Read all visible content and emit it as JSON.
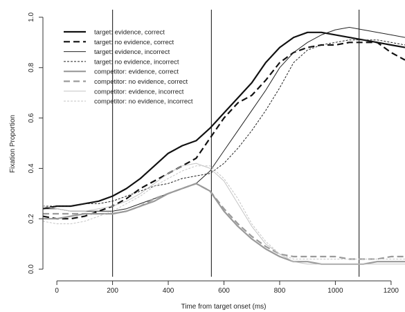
{
  "chart_data": {
    "type": "line",
    "title": "",
    "xlabel": "Time from target onset (ms)",
    "ylabel": "Fixation Proportion",
    "xlim": [
      -50,
      1250
    ],
    "ylim": [
      -0.03,
      1.03
    ],
    "xticks": [
      0,
      200,
      400,
      600,
      800,
      1000,
      1200
    ],
    "yticks": [
      0.0,
      0.2,
      0.4,
      0.6,
      0.8,
      1.0
    ],
    "ytick_labels": [
      "0.0",
      "0.2",
      "0.4",
      "0.6",
      "0.8",
      "1.0"
    ],
    "vertical_lines": [
      200,
      555,
      1085
    ],
    "grid": false,
    "legend_position": "top-left",
    "series": [
      {
        "name": "target: evidence, correct",
        "color": "#111111",
        "width": 2.2,
        "dash": "solid",
        "x": [
          -50,
          0,
          50,
          100,
          150,
          200,
          250,
          300,
          350,
          400,
          450,
          500,
          550,
          600,
          650,
          700,
          750,
          800,
          850,
          900,
          950,
          1000,
          1050,
          1100,
          1150,
          1200,
          1250
        ],
        "y": [
          0.24,
          0.25,
          0.25,
          0.26,
          0.27,
          0.29,
          0.32,
          0.36,
          0.41,
          0.46,
          0.49,
          0.51,
          0.56,
          0.62,
          0.68,
          0.74,
          0.82,
          0.88,
          0.92,
          0.94,
          0.94,
          0.93,
          0.92,
          0.91,
          0.9,
          0.89,
          0.88
        ]
      },
      {
        "name": "target: no evidence, correct",
        "color": "#111111",
        "width": 2.2,
        "dash": "9,5",
        "x": [
          -50,
          0,
          50,
          100,
          150,
          200,
          250,
          300,
          350,
          400,
          450,
          500,
          550,
          600,
          650,
          700,
          750,
          800,
          850,
          900,
          950,
          1000,
          1050,
          1100,
          1150,
          1200,
          1250
        ],
        "y": [
          0.21,
          0.2,
          0.2,
          0.21,
          0.23,
          0.25,
          0.28,
          0.32,
          0.35,
          0.38,
          0.41,
          0.44,
          0.52,
          0.6,
          0.66,
          0.69,
          0.75,
          0.82,
          0.86,
          0.88,
          0.89,
          0.89,
          0.9,
          0.9,
          0.9,
          0.86,
          0.83
        ]
      },
      {
        "name": "target: evidence, incorrect",
        "color": "#222222",
        "width": 1.0,
        "dash": "solid",
        "x": [
          -50,
          0,
          50,
          100,
          150,
          200,
          250,
          300,
          350,
          400,
          450,
          500,
          550,
          600,
          650,
          700,
          750,
          800,
          850,
          900,
          950,
          1000,
          1050,
          1100,
          1150,
          1200,
          1250
        ],
        "y": [
          0.24,
          0.24,
          0.23,
          0.23,
          0.23,
          0.23,
          0.24,
          0.26,
          0.28,
          0.3,
          0.32,
          0.34,
          0.39,
          0.47,
          0.55,
          0.63,
          0.71,
          0.8,
          0.86,
          0.9,
          0.93,
          0.95,
          0.96,
          0.95,
          0.94,
          0.93,
          0.92
        ]
      },
      {
        "name": "target: no evidence, incorrect",
        "color": "#222222",
        "width": 1.0,
        "dash": "3,2",
        "x": [
          -50,
          0,
          50,
          100,
          150,
          200,
          250,
          300,
          350,
          400,
          450,
          500,
          550,
          600,
          650,
          700,
          750,
          800,
          850,
          900,
          950,
          1000,
          1050,
          1100,
          1150,
          1200,
          1250
        ],
        "y": [
          0.25,
          0.25,
          0.25,
          0.26,
          0.26,
          0.27,
          0.29,
          0.31,
          0.33,
          0.34,
          0.36,
          0.37,
          0.38,
          0.42,
          0.48,
          0.55,
          0.63,
          0.72,
          0.82,
          0.87,
          0.89,
          0.9,
          0.91,
          0.91,
          0.91,
          0.9,
          0.89
        ]
      },
      {
        "name": "competitor: evidence, correct",
        "color": "#9a9a9a",
        "width": 2.2,
        "dash": "solid",
        "x": [
          -50,
          0,
          50,
          100,
          150,
          200,
          250,
          300,
          350,
          400,
          450,
          500,
          550,
          600,
          650,
          700,
          750,
          800,
          850,
          900,
          950,
          1000,
          1050,
          1100,
          1150,
          1200,
          1250
        ],
        "y": [
          0.2,
          0.2,
          0.21,
          0.22,
          0.22,
          0.22,
          0.23,
          0.25,
          0.27,
          0.3,
          0.32,
          0.34,
          0.31,
          0.23,
          0.17,
          0.12,
          0.08,
          0.05,
          0.03,
          0.03,
          0.02,
          0.02,
          0.02,
          0.02,
          0.03,
          0.03,
          0.03
        ]
      },
      {
        "name": "competitor: no evidence, correct",
        "color": "#9a9a9a",
        "width": 2.2,
        "dash": "9,5",
        "x": [
          -50,
          0,
          50,
          100,
          150,
          200,
          250,
          300,
          350,
          400,
          450,
          500,
          550,
          600,
          650,
          700,
          750,
          800,
          850,
          900,
          950,
          1000,
          1050,
          1100,
          1150,
          1200,
          1250
        ],
        "y": [
          0.22,
          0.22,
          0.22,
          0.22,
          0.22,
          0.22,
          0.23,
          0.25,
          0.28,
          0.3,
          0.32,
          0.34,
          0.31,
          0.24,
          0.18,
          0.13,
          0.09,
          0.06,
          0.05,
          0.05,
          0.05,
          0.05,
          0.04,
          0.04,
          0.04,
          0.05,
          0.05
        ]
      },
      {
        "name": "competitor: evidence, incorrect",
        "color": "#c4c4c4",
        "width": 1.0,
        "dash": "solid",
        "x": [
          -50,
          0,
          50,
          100,
          150,
          200,
          250,
          300,
          350,
          400,
          450,
          500,
          550,
          600,
          650,
          700,
          750,
          800,
          850,
          900,
          950,
          1000,
          1050,
          1100,
          1150,
          1200,
          1250
        ],
        "y": [
          0.25,
          0.24,
          0.23,
          0.23,
          0.24,
          0.25,
          0.27,
          0.3,
          0.34,
          0.38,
          0.41,
          0.42,
          0.4,
          0.35,
          0.26,
          0.17,
          0.1,
          0.06,
          0.03,
          0.02,
          0.02,
          0.02,
          0.02,
          0.02,
          0.02,
          0.02,
          0.02
        ]
      },
      {
        "name": "competitor: no evidence, incorrect",
        "color": "#c4c4c4",
        "width": 1.0,
        "dash": "3,2",
        "x": [
          -50,
          0,
          50,
          100,
          150,
          200,
          250,
          300,
          350,
          400,
          450,
          500,
          550,
          600,
          650,
          700,
          750,
          800,
          850,
          900,
          950,
          1000,
          1050,
          1100,
          1150,
          1200,
          1250
        ],
        "y": [
          0.19,
          0.18,
          0.18,
          0.19,
          0.21,
          0.23,
          0.26,
          0.29,
          0.33,
          0.36,
          0.39,
          0.41,
          0.41,
          0.36,
          0.28,
          0.18,
          0.11,
          0.06,
          0.04,
          0.04,
          0.04,
          0.04,
          0.04,
          0.04,
          0.04,
          0.04,
          0.04
        ]
      }
    ]
  }
}
